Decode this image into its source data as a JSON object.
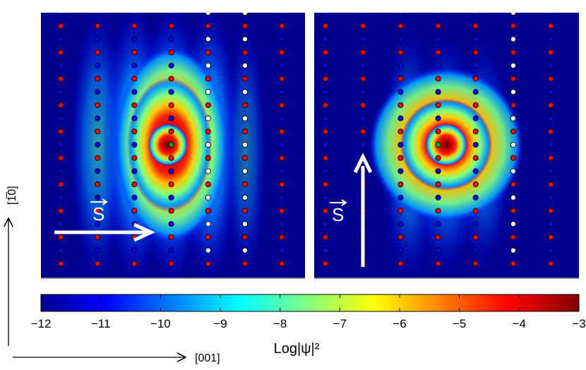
{
  "panels": [
    {
      "id": "left",
      "spin_label": "S",
      "spin_direction": "horizontal"
    },
    {
      "id": "right",
      "spin_label": "S",
      "spin_direction": "vertical"
    }
  ],
  "axes": {
    "vertical_label": "[1̅0]",
    "horizontal_label": "[001]"
  },
  "colorbar": {
    "label": "Log|ψ|²",
    "min": -12,
    "max": -3,
    "ticks": [
      "−12",
      "−11",
      "−10",
      "−9",
      "−8",
      "−7",
      "−6",
      "−5",
      "−4",
      "−3"
    ],
    "colormap": "jet",
    "colors": [
      "#00008f",
      "#0000ff",
      "#00ffff",
      "#ffff00",
      "#ff0000",
      "#800000"
    ]
  },
  "lattice": {
    "columns": 7,
    "rows": 20,
    "atom_colors": {
      "red": "#ff0000",
      "blue": "#0000ff",
      "white": "#ffffff",
      "center": "#00aa00"
    }
  },
  "background_color": "#00008f"
}
